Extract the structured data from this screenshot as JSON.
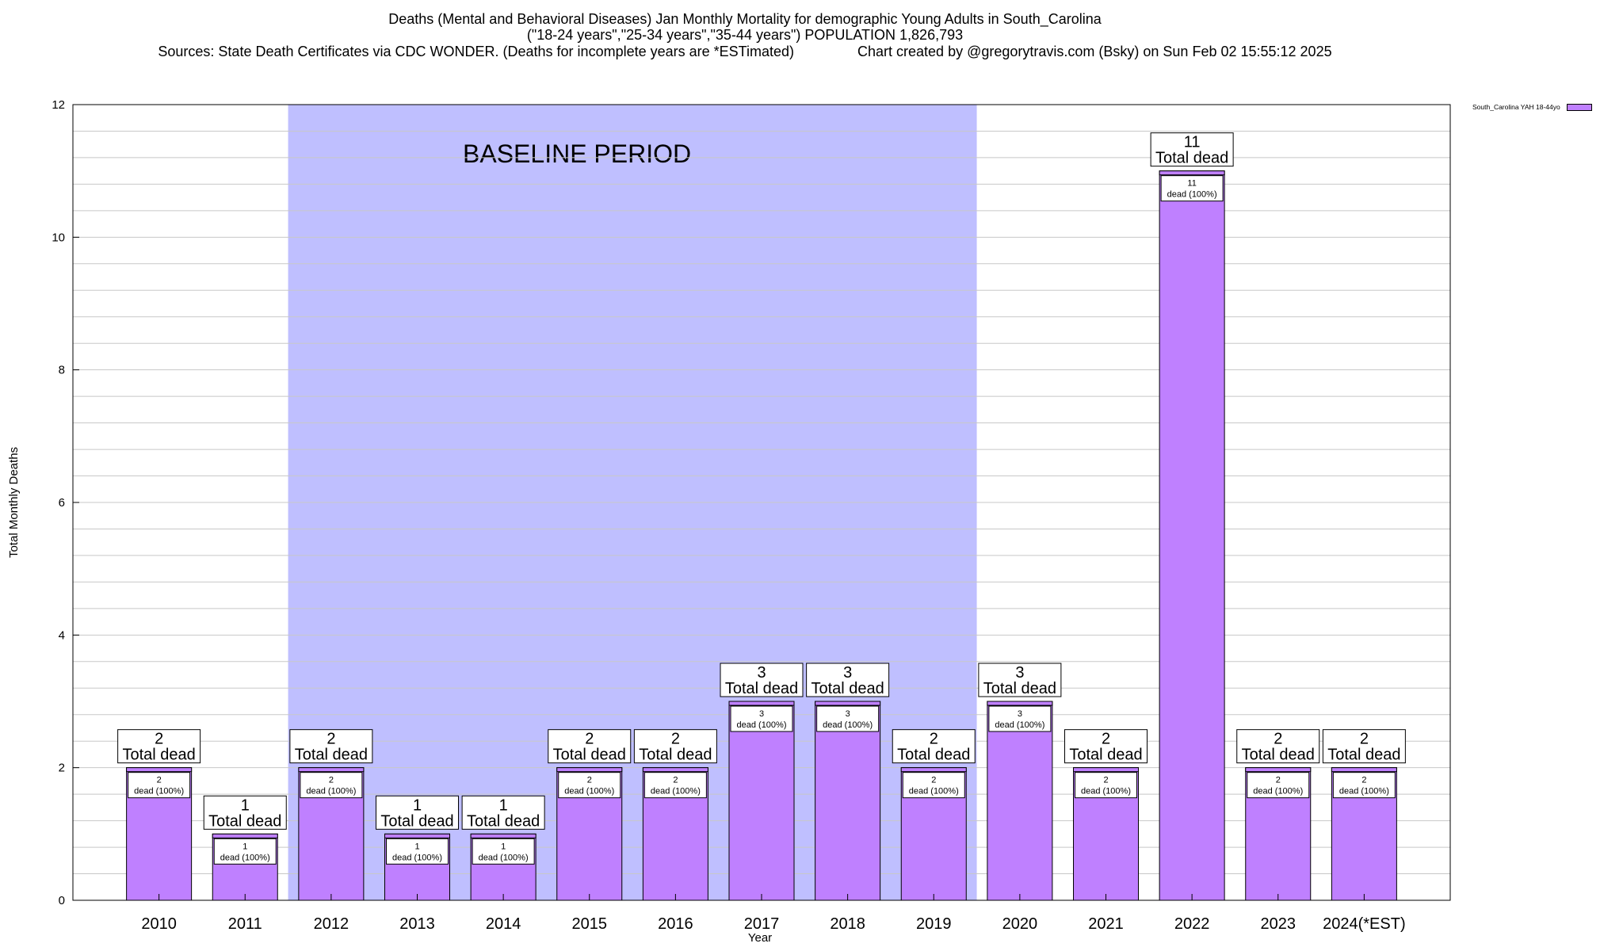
{
  "title": {
    "line1": "Deaths (Mental and Behavioral Diseases) Jan Monthly Mortality for demographic Young Adults in South_Carolina",
    "line2": "(\"18-24 years\",\"25-34 years\",\"35-44 years\") POPULATION 1,826,793",
    "line3": "Sources: State Death Certificates via CDC WONDER. (Deaths for incomplete years are *ESTimated)                Chart created by @gregorytravis.com (Bsky) on Sun Feb 02 15:55:12 2025"
  },
  "legend": {
    "label": "South_Carolina YAH 18-44yo"
  },
  "chart_data": {
    "type": "bar",
    "xlabel": "Year",
    "ylabel": "Total Monthly Deaths",
    "ylim": [
      0,
      12
    ],
    "yticks": [
      0,
      2,
      4,
      6,
      8,
      10,
      12
    ],
    "grid": true,
    "legend_position": "top-right",
    "bar_color": "#bf80ff",
    "baseline_color": "#bfbfff",
    "baseline_label": "BASELINE PERIOD",
    "baseline_range": [
      "2012",
      "2019"
    ],
    "categories": [
      "2010",
      "2011",
      "2012",
      "2013",
      "2014",
      "2015",
      "2016",
      "2017",
      "2018",
      "2019",
      "2020",
      "2021",
      "2022",
      "2023",
      "2024(*EST)"
    ],
    "series": [
      {
        "name": "South_Carolina YAH 18-44yo",
        "values": [
          2,
          1,
          2,
          1,
          1,
          2,
          2,
          3,
          3,
          2,
          3,
          2,
          11,
          2,
          2
        ]
      }
    ],
    "total_label_suffix": "Total dead",
    "inner_label_suffix": "dead (100%)"
  }
}
